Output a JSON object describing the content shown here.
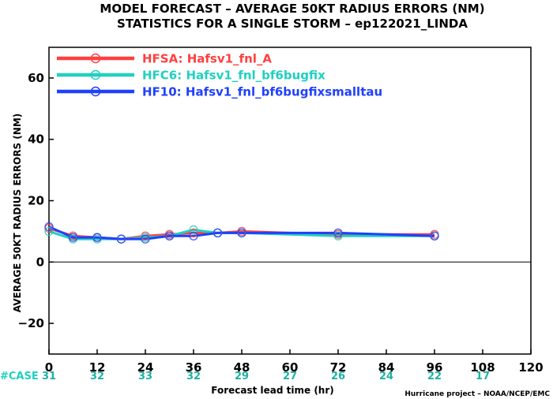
{
  "title": {
    "line1": "MODEL FORECAST – AVERAGE 50KT RADIUS ERRORS (NM)",
    "line2": "STATISTICS FOR A SINGLE STORM – ep122021_LINDA"
  },
  "chart_data": {
    "type": "line",
    "ylabel": "AVERAGE 50KT RADIUS ERRORS (NM)",
    "xlabel": "Forecast lead time (hr)",
    "xlim": [
      0,
      120
    ],
    "ylim": [
      -30,
      70
    ],
    "xticks": [
      0,
      12,
      24,
      36,
      48,
      60,
      72,
      84,
      96,
      108,
      120
    ],
    "yticks": [
      -20,
      0,
      20,
      40,
      60
    ],
    "zero_line": true,
    "legend_position": "top-left",
    "series": [
      {
        "name": "HFSA:  Hafsv1_fnl_A",
        "color": "#ff4040",
        "x": [
          0,
          6,
          12,
          18,
          24,
          30,
          36,
          42,
          48,
          72,
          96
        ],
        "y": [
          11,
          8.5,
          8,
          7.5,
          8.5,
          9,
          9.5,
          9.5,
          10,
          9,
          9
        ]
      },
      {
        "name": "HFC6:  Hafsv1_fnl_bf6bugfix",
        "color": "#20d0c0",
        "x": [
          0,
          6,
          12,
          18,
          24,
          30,
          36,
          42,
          48,
          72,
          96
        ],
        "y": [
          10,
          7.5,
          7.5,
          7.5,
          8,
          8.5,
          10.5,
          9.5,
          9.5,
          8.5,
          8.5
        ]
      },
      {
        "name": "HF10:  Hafsv1_fnl_bf6bugfixsmalltau",
        "color": "#2040ff",
        "x": [
          0,
          6,
          12,
          18,
          24,
          30,
          36,
          42,
          48,
          72,
          96
        ],
        "y": [
          11.5,
          8,
          8,
          7.5,
          7.5,
          8.5,
          8.5,
          9.5,
          9.5,
          9.5,
          8.5
        ]
      }
    ],
    "cases": {
      "label": "#CASE",
      "x": [
        0,
        12,
        24,
        36,
        48,
        60,
        72,
        84,
        96,
        108
      ],
      "values": [
        "31",
        "32",
        "33",
        "32",
        "29",
        "27",
        "26",
        "24",
        "22",
        "17"
      ],
      "label_color": "#20d0c0",
      "value_color": "#20b0a0"
    }
  },
  "credit": "Hurricane project – NOAA/NCEP/EMC"
}
